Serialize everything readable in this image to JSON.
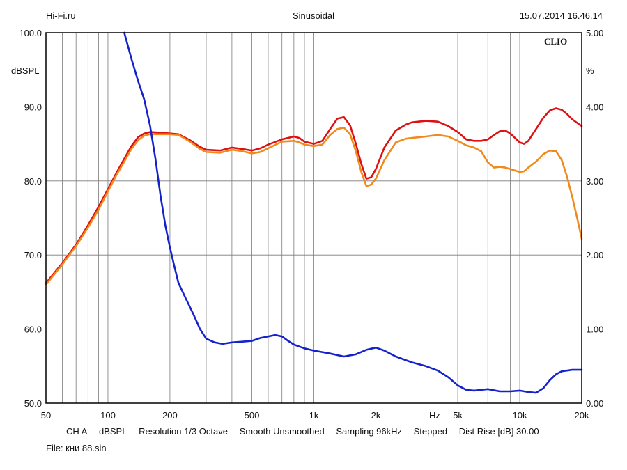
{
  "header": {
    "left": "Hi-Fi.ru",
    "center": "Sinusoidal",
    "right": "15.07.2014 16.46.14"
  },
  "brand": "CLIO",
  "footer": {
    "settings": [
      "CH A",
      "dBSPL",
      "Resolution 1/3 Octave",
      "Smooth Unsmoothed",
      "Sampling 96kHz",
      "Stepped",
      "Dist Rise [dB] 30.00"
    ],
    "file": "File: кни 88.sin"
  },
  "colors": {
    "red": "#dd1111",
    "orange": "#f08a1c",
    "blue": "#1522cc",
    "grid": "#7a7a7a",
    "frame": "#000000"
  },
  "chart_data": {
    "type": "line",
    "xscale": "log",
    "xlim": [
      50,
      20000
    ],
    "ylim": [
      50,
      100
    ],
    "ylim_right": [
      0,
      5
    ],
    "ylabel": "dBSPL",
    "ylabel_right": "%",
    "xlabel": "Hz",
    "x_tick_labels": [
      {
        "value": 50,
        "label": "50"
      },
      {
        "value": 100,
        "label": "100"
      },
      {
        "value": 200,
        "label": "200"
      },
      {
        "value": 500,
        "label": "500"
      },
      {
        "value": 1000,
        "label": "1k"
      },
      {
        "value": 2000,
        "label": "2k"
      },
      {
        "value": 5000,
        "label": "5k"
      },
      {
        "value": 10000,
        "label": "10k"
      },
      {
        "value": 20000,
        "label": "20k"
      }
    ],
    "y_tick_labels": [
      {
        "value": 100,
        "label": "100.0"
      },
      {
        "value": 90,
        "label": "90.0"
      },
      {
        "value": 80,
        "label": "80.0"
      },
      {
        "value": 70,
        "label": "70.0"
      },
      {
        "value": 60,
        "label": "60.0"
      },
      {
        "value": 50,
        "label": "50.0"
      }
    ],
    "y_right_tick_labels": [
      {
        "value": 5,
        "label": "5.00"
      },
      {
        "value": 4,
        "label": "4.00"
      },
      {
        "value": 3,
        "label": "3.00"
      },
      {
        "value": 2,
        "label": "2.00"
      },
      {
        "value": 1,
        "label": "1.00"
      },
      {
        "value": 0,
        "label": "0.00"
      }
    ],
    "grid": true,
    "series": [
      {
        "axis": "left",
        "color": "#dd1111",
        "points": [
          [
            50,
            66.2
          ],
          [
            60,
            68.9
          ],
          [
            70,
            71.4
          ],
          [
            80,
            74.0
          ],
          [
            90,
            76.5
          ],
          [
            100,
            78.9
          ],
          [
            110,
            81.1
          ],
          [
            120,
            83.0
          ],
          [
            130,
            84.7
          ],
          [
            140,
            85.9
          ],
          [
            150,
            86.4
          ],
          [
            160,
            86.6
          ],
          [
            180,
            86.5
          ],
          [
            200,
            86.4
          ],
          [
            220,
            86.3
          ],
          [
            250,
            85.5
          ],
          [
            280,
            84.6
          ],
          [
            300,
            84.2
          ],
          [
            350,
            84.1
          ],
          [
            400,
            84.5
          ],
          [
            450,
            84.3
          ],
          [
            500,
            84.1
          ],
          [
            550,
            84.4
          ],
          [
            600,
            84.9
          ],
          [
            700,
            85.6
          ],
          [
            800,
            86.0
          ],
          [
            850,
            85.8
          ],
          [
            900,
            85.3
          ],
          [
            1000,
            85.0
          ],
          [
            1100,
            85.4
          ],
          [
            1200,
            87.0
          ],
          [
            1300,
            88.4
          ],
          [
            1400,
            88.6
          ],
          [
            1500,
            87.5
          ],
          [
            1600,
            85.0
          ],
          [
            1700,
            82.3
          ],
          [
            1800,
            80.3
          ],
          [
            1900,
            80.5
          ],
          [
            2000,
            81.6
          ],
          [
            2200,
            84.5
          ],
          [
            2500,
            86.8
          ],
          [
            2800,
            87.6
          ],
          [
            3000,
            87.9
          ],
          [
            3500,
            88.1
          ],
          [
            4000,
            88.0
          ],
          [
            4500,
            87.4
          ],
          [
            5000,
            86.6
          ],
          [
            5500,
            85.6
          ],
          [
            6000,
            85.4
          ],
          [
            6500,
            85.4
          ],
          [
            7000,
            85.6
          ],
          [
            7500,
            86.2
          ],
          [
            8000,
            86.7
          ],
          [
            8500,
            86.8
          ],
          [
            9000,
            86.4
          ],
          [
            10000,
            85.2
          ],
          [
            10500,
            85.0
          ],
          [
            11000,
            85.4
          ],
          [
            12000,
            87.0
          ],
          [
            13000,
            88.5
          ],
          [
            14000,
            89.5
          ],
          [
            15000,
            89.8
          ],
          [
            16000,
            89.6
          ],
          [
            17000,
            89.0
          ],
          [
            18000,
            88.3
          ],
          [
            20000,
            87.4
          ]
        ]
      },
      {
        "axis": "left",
        "color": "#f08a1c",
        "points": [
          [
            50,
            66.0
          ],
          [
            60,
            68.7
          ],
          [
            70,
            71.2
          ],
          [
            80,
            73.7
          ],
          [
            90,
            76.1
          ],
          [
            100,
            78.6
          ],
          [
            110,
            80.8
          ],
          [
            120,
            82.6
          ],
          [
            130,
            84.3
          ],
          [
            140,
            85.5
          ],
          [
            150,
            86.1
          ],
          [
            160,
            86.3
          ],
          [
            180,
            86.3
          ],
          [
            200,
            86.3
          ],
          [
            220,
            86.2
          ],
          [
            250,
            85.3
          ],
          [
            280,
            84.3
          ],
          [
            300,
            83.9
          ],
          [
            350,
            83.8
          ],
          [
            400,
            84.2
          ],
          [
            450,
            84.0
          ],
          [
            500,
            83.7
          ],
          [
            550,
            83.9
          ],
          [
            600,
            84.4
          ],
          [
            700,
            85.3
          ],
          [
            800,
            85.4
          ],
          [
            850,
            85.2
          ],
          [
            900,
            84.9
          ],
          [
            1000,
            84.7
          ],
          [
            1100,
            84.9
          ],
          [
            1200,
            86.2
          ],
          [
            1300,
            87.0
          ],
          [
            1400,
            87.2
          ],
          [
            1500,
            86.3
          ],
          [
            1600,
            84.0
          ],
          [
            1700,
            81.2
          ],
          [
            1800,
            79.3
          ],
          [
            1900,
            79.5
          ],
          [
            2000,
            80.3
          ],
          [
            2200,
            82.8
          ],
          [
            2500,
            85.2
          ],
          [
            2800,
            85.7
          ],
          [
            3000,
            85.8
          ],
          [
            3500,
            86.0
          ],
          [
            4000,
            86.2
          ],
          [
            4500,
            86.0
          ],
          [
            5000,
            85.4
          ],
          [
            5500,
            84.8
          ],
          [
            6000,
            84.5
          ],
          [
            6500,
            84.0
          ],
          [
            7000,
            82.5
          ],
          [
            7500,
            81.8
          ],
          [
            8000,
            81.9
          ],
          [
            8500,
            81.8
          ],
          [
            9000,
            81.6
          ],
          [
            10000,
            81.2
          ],
          [
            10500,
            81.3
          ],
          [
            11000,
            81.8
          ],
          [
            12000,
            82.6
          ],
          [
            13000,
            83.6
          ],
          [
            14000,
            84.1
          ],
          [
            15000,
            84.0
          ],
          [
            16000,
            82.8
          ],
          [
            17000,
            80.5
          ],
          [
            18000,
            77.8
          ],
          [
            19000,
            75.0
          ],
          [
            20000,
            72.2
          ]
        ]
      },
      {
        "axis": "right",
        "color": "#1522cc",
        "points": [
          [
            120,
            5.0
          ],
          [
            130,
            4.65
          ],
          [
            140,
            4.35
          ],
          [
            150,
            4.1
          ],
          [
            160,
            3.75
          ],
          [
            170,
            3.3
          ],
          [
            180,
            2.8
          ],
          [
            190,
            2.4
          ],
          [
            200,
            2.1
          ],
          [
            210,
            1.85
          ],
          [
            220,
            1.62
          ],
          [
            240,
            1.4
          ],
          [
            260,
            1.2
          ],
          [
            280,
            1.0
          ],
          [
            300,
            0.87
          ],
          [
            330,
            0.82
          ],
          [
            360,
            0.8
          ],
          [
            400,
            0.82
          ],
          [
            450,
            0.83
          ],
          [
            500,
            0.84
          ],
          [
            550,
            0.88
          ],
          [
            600,
            0.9
          ],
          [
            650,
            0.92
          ],
          [
            700,
            0.9
          ],
          [
            750,
            0.84
          ],
          [
            800,
            0.79
          ],
          [
            900,
            0.74
          ],
          [
            1000,
            0.71
          ],
          [
            1200,
            0.67
          ],
          [
            1400,
            0.63
          ],
          [
            1600,
            0.66
          ],
          [
            1800,
            0.72
          ],
          [
            2000,
            0.75
          ],
          [
            2200,
            0.71
          ],
          [
            2500,
            0.63
          ],
          [
            3000,
            0.55
          ],
          [
            3500,
            0.5
          ],
          [
            4000,
            0.44
          ],
          [
            4500,
            0.35
          ],
          [
            5000,
            0.24
          ],
          [
            5500,
            0.18
          ],
          [
            6000,
            0.17
          ],
          [
            7000,
            0.19
          ],
          [
            8000,
            0.16
          ],
          [
            9000,
            0.16
          ],
          [
            10000,
            0.17
          ],
          [
            11000,
            0.15
          ],
          [
            12000,
            0.14
          ],
          [
            13000,
            0.2
          ],
          [
            14000,
            0.31
          ],
          [
            15000,
            0.39
          ],
          [
            16000,
            0.43
          ],
          [
            18000,
            0.45
          ],
          [
            20000,
            0.45
          ]
        ]
      }
    ]
  }
}
